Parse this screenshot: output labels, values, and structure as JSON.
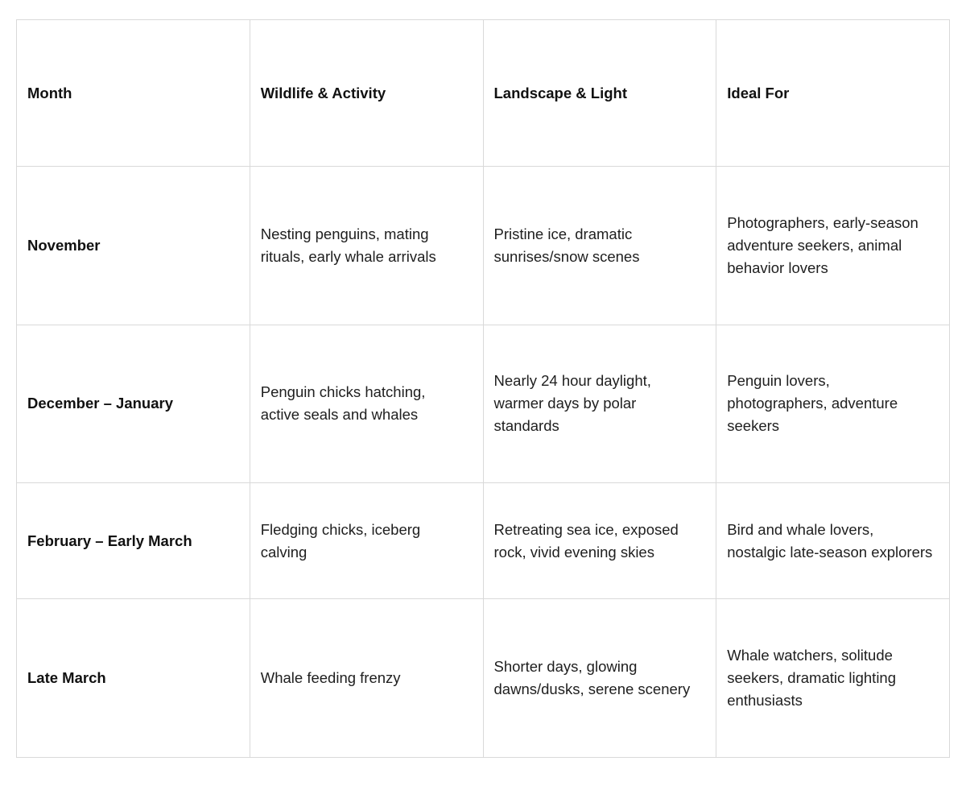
{
  "page": {
    "background_color": "#ffffff"
  },
  "table": {
    "border_color": "#d9d9d9",
    "header_text_color": "#111111",
    "body_text_color": "#202020",
    "columns": [
      {
        "label": "Month"
      },
      {
        "label": "Wildlife & Activity"
      },
      {
        "label": "Landscape & Light"
      },
      {
        "label": "Ideal For"
      }
    ],
    "rows": [
      {
        "month": "November",
        "wildlife_activity": "Nesting penguins, mating rituals, early whale arrivals",
        "landscape_light": "Pristine ice, dramatic sunrises/snow scenes",
        "ideal_for": "Photographers, early-season adventure seekers, animal behavior lovers"
      },
      {
        "month": "December – January",
        "wildlife_activity": "Penguin chicks hatching, active seals and whales",
        "landscape_light": "Nearly 24 hour daylight, warmer days by polar standards",
        "ideal_for": "Penguin lovers, photographers, adventure seekers"
      },
      {
        "month": "February – Early March",
        "wildlife_activity": "Fledging chicks, iceberg calving",
        "landscape_light": "Retreating sea ice, exposed rock, vivid evening skies",
        "ideal_for": "Bird and whale lovers, nostalgic late-season explorers"
      },
      {
        "month": "Late March",
        "wildlife_activity": "Whale feeding frenzy",
        "landscape_light": "Shorter days, glowing dawns/dusks, serene scenery",
        "ideal_for": "Whale watchers, solitude seekers, dramatic lighting enthusiasts"
      }
    ]
  }
}
